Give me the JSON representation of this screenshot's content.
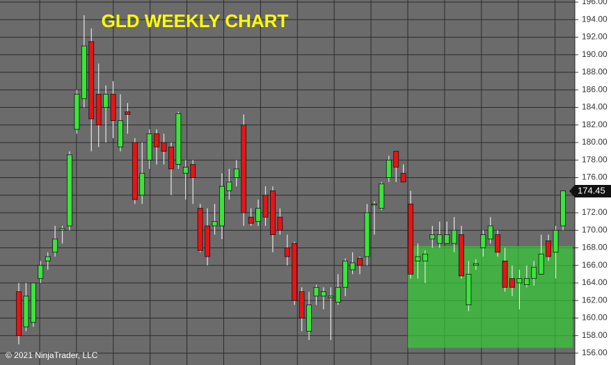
{
  "chart_data": {
    "type": "candlestick",
    "title": "GLD WEEKLY CHART",
    "footer": "© 2021 NinjaTrader, LLC",
    "ylim": [
      154.65,
      196.24
    ],
    "yticks": [
      {
        "value": 156,
        "label": "156.00"
      },
      {
        "value": 158,
        "label": "158.00"
      },
      {
        "value": 160,
        "label": "160.00"
      },
      {
        "value": 162,
        "label": "162.00"
      },
      {
        "value": 164,
        "label": "164.00"
      },
      {
        "value": 166,
        "label": "166.00"
      },
      {
        "value": 168,
        "label": "168.00"
      },
      {
        "value": 170,
        "label": "170.00"
      },
      {
        "value": 172,
        "label": "172.00"
      },
      {
        "value": 174,
        "label": "174.00"
      },
      {
        "value": 176,
        "label": "176.00"
      },
      {
        "value": 178,
        "label": "178.00"
      },
      {
        "value": 180,
        "label": "180.00"
      },
      {
        "value": 182,
        "label": "182.00"
      },
      {
        "value": 184,
        "label": "184.00"
      },
      {
        "value": 186,
        "label": "186.00"
      },
      {
        "value": 188,
        "label": "188.00"
      },
      {
        "value": 190,
        "label": "190.00"
      },
      {
        "value": 192,
        "label": "192.00"
      },
      {
        "value": 194,
        "label": "194.00"
      },
      {
        "value": 196,
        "label": "196.00"
      }
    ],
    "grid": true,
    "up_color": "#39e639",
    "down_color": "#e81414",
    "last_price": 174.45,
    "zone": {
      "low": 156.6,
      "high": 168.2,
      "color": "#33cc33"
    },
    "open": [
      163,
      159,
      159.5,
      164.5,
      166.5,
      167.5,
      170,
      170.5,
      181.5,
      185,
      191.5,
      185.5,
      184,
      185.5,
      179.5,
      183.5,
      180,
      174,
      178,
      181,
      180,
      179.5,
      177.5,
      176.5,
      177.5,
      172.5,
      170.5,
      170.5,
      170.5,
      174.5,
      176,
      182,
      171.5,
      171,
      174,
      174.5,
      171.5,
      168,
      168.5,
      163,
      158.5,
      162.5,
      162.5,
      162.3,
      161.8,
      163.5,
      165.5,
      166.8,
      167,
      173,
      172.5,
      176,
      179,
      176.5,
      173,
      166.5,
      166.5,
      169,
      168.5,
      168.5,
      168.5,
      169.5,
      161.5,
      166,
      168,
      169,
      169.5,
      166.5,
      164.5,
      164,
      163.8,
      164.5,
      165,
      168.8,
      167.5,
      170.5
    ],
    "high": [
      164,
      164,
      164,
      166.5,
      167.5,
      170.5,
      170.5,
      179,
      186,
      194.5,
      193,
      189,
      186.5,
      187,
      185.5,
      184.5,
      180.5,
      180,
      181.5,
      181.5,
      181,
      180,
      183.5,
      178,
      178,
      173,
      172.5,
      173,
      176.5,
      177,
      178,
      183.2,
      172.5,
      173.5,
      175,
      175,
      172.5,
      169.5,
      168.7,
      163.5,
      163,
      163.8,
      163.5,
      163.5,
      165,
      166.8,
      167.5,
      167,
      173,
      173.3,
      175.5,
      178.5,
      179,
      177.5,
      174.5,
      168.5,
      167.7,
      170.5,
      171,
      171,
      171.5,
      170.5,
      166.5,
      166.7,
      170,
      171.5,
      170,
      168,
      166,
      165.5,
      166,
      166.5,
      169.5,
      169.5,
      170.5,
      174.5
    ],
    "low": [
      157,
      158.5,
      159,
      164,
      165.5,
      167,
      168.5,
      170,
      181,
      184,
      179,
      179.5,
      180,
      180.5,
      179,
      181,
      173,
      173,
      177,
      177.5,
      177.5,
      174,
      177,
      173.5,
      173,
      167.5,
      166,
      169.5,
      169,
      173.5,
      175,
      170.5,
      170.5,
      170.5,
      170.5,
      167.5,
      169.5,
      166,
      161.5,
      158.5,
      157.5,
      161.5,
      161,
      157.5,
      161.5,
      162.5,
      165,
      165,
      166,
      169.5,
      172.3,
      175.5,
      175.5,
      175.5,
      164.5,
      164.5,
      164,
      168,
      168,
      168.5,
      167.5,
      164.5,
      160.8,
      165.5,
      167,
      168.5,
      167,
      163,
      162.5,
      161,
      163.5,
      163.7,
      165,
      166.5,
      164.5,
      170
    ],
    "close": [
      158,
      162.5,
      164,
      166,
      167,
      169,
      170.2,
      178.6,
      185.5,
      191,
      182.7,
      182,
      185.5,
      182.5,
      182.5,
      183.2,
      173.5,
      176.5,
      181,
      179.5,
      179,
      177,
      183.3,
      177.2,
      176,
      167.7,
      167,
      171,
      175,
      175.5,
      177,
      172,
      170.8,
      172.5,
      171.5,
      169.5,
      170,
      167,
      162,
      160,
      161.5,
      163.5,
      163,
      162.5,
      163.5,
      166.5,
      166.3,
      166,
      172,
      173,
      175.3,
      178,
      177.2,
      175.5,
      165,
      167,
      167.3,
      169.5,
      169.5,
      169.5,
      170,
      164.8,
      165,
      166.2,
      169.5,
      170.5,
      167.5,
      163.5,
      163.5,
      164.5,
      164.5,
      165.8,
      167.3,
      167,
      170,
      174.5
    ]
  }
}
